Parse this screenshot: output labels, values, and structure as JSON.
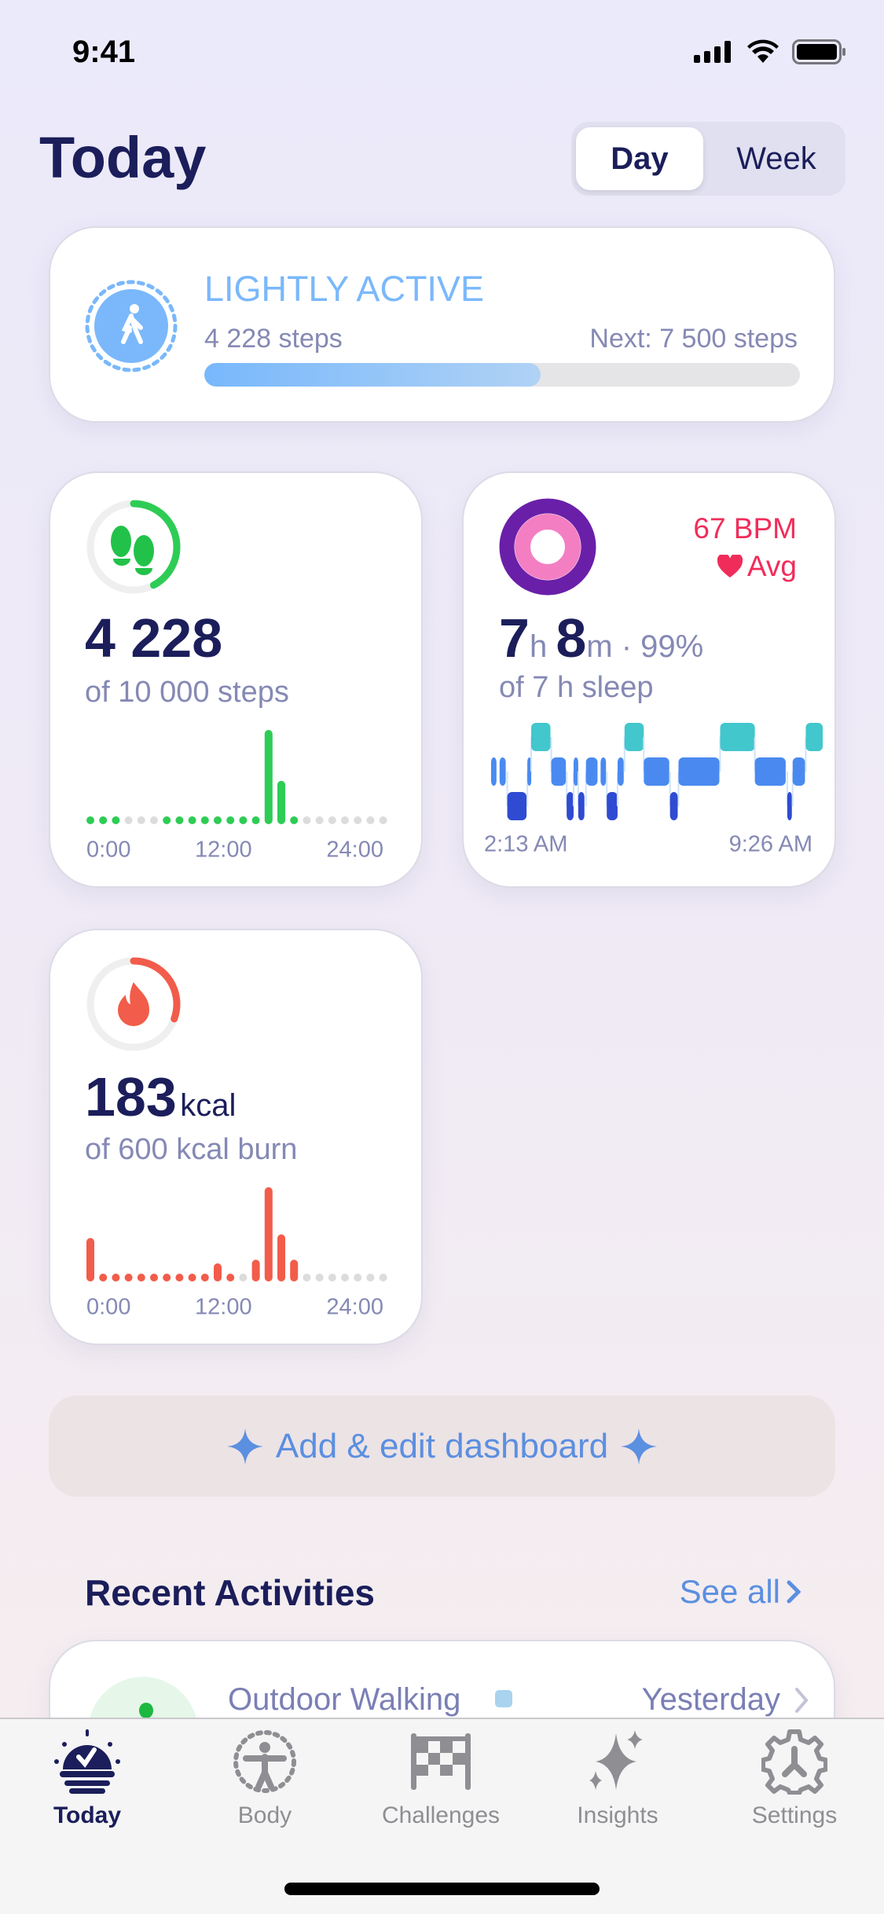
{
  "status_bar": {
    "time": "9:41"
  },
  "header": {
    "title": "Today",
    "segments": [
      {
        "label": "Day",
        "selected": true
      },
      {
        "label": "Week",
        "selected": false
      }
    ]
  },
  "activity_level": {
    "label": "LIGHTLY ACTIVE",
    "steps": "4 228 steps",
    "next": "Next: 7 500 steps",
    "progress": 0.564,
    "icon": "walking-person-icon",
    "color": "#7ab8fb"
  },
  "steps_card": {
    "value": "4 228",
    "subtitle": "of 10 000 steps",
    "progress": 0.423,
    "icon": "footprints-icon",
    "color": "#2ecc55",
    "chart_data": {
      "type": "bar",
      "x_ticks": [
        "0:00",
        "12:00",
        "24:00"
      ],
      "hours": [
        0,
        1,
        2,
        3,
        4,
        5,
        6,
        7,
        8,
        9,
        10,
        11,
        12,
        13,
        14,
        15,
        16,
        17,
        18,
        19,
        20,
        21,
        22,
        23
      ],
      "values": [
        150,
        30,
        60,
        0,
        0,
        0,
        30,
        40,
        30,
        30,
        80,
        30,
        50,
        70,
        2500,
        1150,
        60,
        0,
        0,
        0,
        0,
        0,
        0,
        0
      ]
    }
  },
  "sleep_card": {
    "heart_rate": "67 BPM",
    "heart_label": "Avg",
    "hours": "7",
    "hours_unit": "h",
    "minutes": "8",
    "minutes_unit": "m",
    "quality": "· 99%",
    "subtitle": "of 7 h sleep",
    "ring_colors": {
      "outer": "#6a1fa8",
      "inner": "#f47ec2"
    },
    "heart_color": "#f02d5a",
    "chart_data": {
      "type": "timeline",
      "start": "2:13 AM",
      "end": "9:26 AM",
      "stage_colors": {
        "awake": "#41c7cc",
        "core": "#4a8af0",
        "deep": "#2f4bd1"
      },
      "segments": [
        [
          "2:15",
          "2:22",
          "core"
        ],
        [
          "2:26",
          "2:34",
          "core"
        ],
        [
          "2:36",
          "3:01",
          "deep"
        ],
        [
          "3:02",
          "3:07",
          "core"
        ],
        [
          "3:07",
          "3:32",
          "awake"
        ],
        [
          "3:33",
          "3:52",
          "core"
        ],
        [
          "3:53",
          "4:02",
          "deep"
        ],
        [
          "4:02",
          "4:08",
          "core"
        ],
        [
          "4:08",
          "4:16",
          "deep"
        ],
        [
          "4:18",
          "4:33",
          "core"
        ],
        [
          "4:37",
          "4:44",
          "core"
        ],
        [
          "4:45",
          "4:59",
          "deep"
        ],
        [
          "4:59",
          "5:07",
          "core"
        ],
        [
          "5:08",
          "5:33",
          "awake"
        ],
        [
          "5:33",
          "6:06",
          "core"
        ],
        [
          "6:07",
          "6:17",
          "deep"
        ],
        [
          "6:18",
          "7:11",
          "core"
        ],
        [
          "7:12",
          "7:57",
          "awake"
        ],
        [
          "7:57",
          "8:37",
          "core"
        ],
        [
          "8:39",
          "8:45",
          "deep"
        ],
        [
          "8:46",
          "9:02",
          "core"
        ],
        [
          "9:03",
          "9:25",
          "awake"
        ]
      ]
    }
  },
  "calories_card": {
    "value": "183",
    "unit": "kcal",
    "subtitle": "of 600 kcal burn",
    "progress": 0.305,
    "icon": "flame-icon",
    "color": "#f25c4a",
    "chart_data": {
      "type": "bar",
      "x_ticks": [
        "0:00",
        "12:00",
        "24:00"
      ],
      "hours": [
        0,
        1,
        2,
        3,
        4,
        5,
        6,
        7,
        8,
        9,
        10,
        11,
        12,
        13,
        14,
        15,
        16,
        17,
        18,
        19,
        20,
        21,
        22,
        23
      ],
      "values": [
        12,
        1,
        2,
        1,
        1,
        1,
        1,
        1,
        1,
        1,
        5,
        1,
        0,
        6,
        26,
        13,
        6,
        0,
        0,
        0,
        0,
        0,
        0,
        0
      ]
    }
  },
  "add_dashboard": {
    "label": "Add & edit dashboard"
  },
  "recent": {
    "title": "Recent Activities",
    "see_all": "See all",
    "items": [
      {
        "name": "Outdoor Walking",
        "when": "Yesterday"
      }
    ]
  },
  "tabbar": {
    "items": [
      {
        "label": "Today",
        "icon": "today-sun-check-icon",
        "active": true
      },
      {
        "label": "Body",
        "icon": "body-figure-icon"
      },
      {
        "label": "Challenges",
        "icon": "checkered-flag-icon"
      },
      {
        "label": "Insights",
        "icon": "sparkles-icon"
      },
      {
        "label": "Settings",
        "icon": "gear-icon"
      }
    ]
  }
}
